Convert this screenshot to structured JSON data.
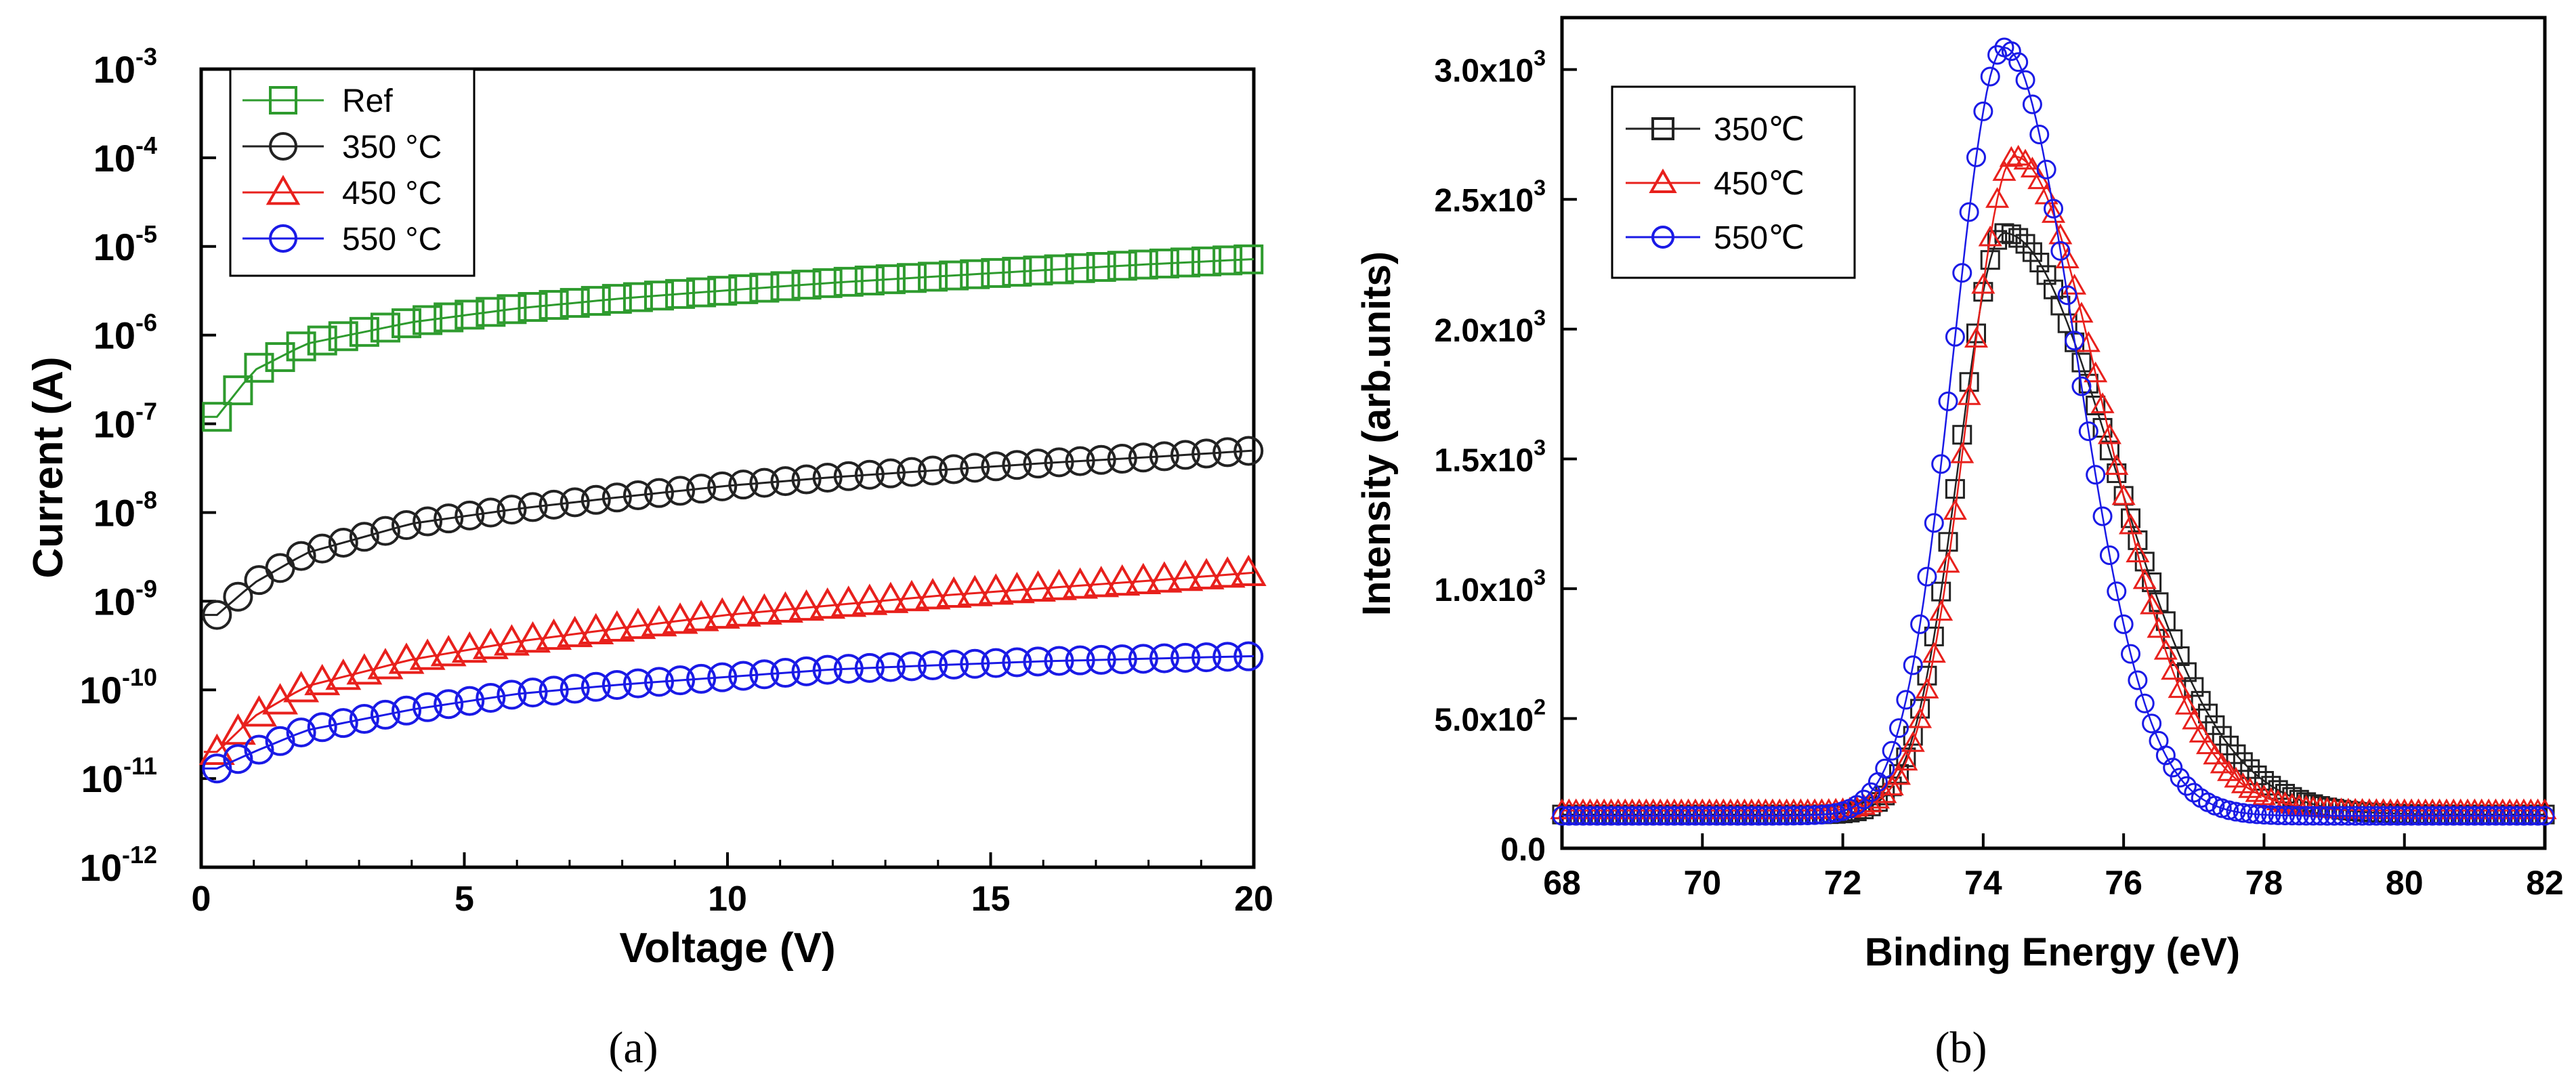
{
  "chart_data": [
    {
      "type": "scatter",
      "panel_label": "(a)",
      "xlabel": "Voltage (V)",
      "ylabel": "Current (A)",
      "xlim": [
        0,
        20
      ],
      "ylim_log10": [
        -12,
        -3
      ],
      "yscale": "log",
      "xticks": [
        {
          "value": 0,
          "label": "0"
        },
        {
          "value": 5,
          "label": "5"
        },
        {
          "value": 10,
          "label": "10"
        },
        {
          "value": 15,
          "label": "15"
        },
        {
          "value": 20,
          "label": "20"
        }
      ],
      "yticks": [
        {
          "exp": -3,
          "base": "10",
          "sup": "-3"
        },
        {
          "exp": -4,
          "base": "10",
          "sup": "-4"
        },
        {
          "exp": -5,
          "base": "10",
          "sup": "-5"
        },
        {
          "exp": -6,
          "base": "10",
          "sup": "-6"
        },
        {
          "exp": -7,
          "base": "10",
          "sup": "-7"
        },
        {
          "exp": -8,
          "base": "10",
          "sup": "-8"
        },
        {
          "exp": -9,
          "base": "10",
          "sup": "-9"
        },
        {
          "exp": -10,
          "base": "10",
          "sup": "-10"
        },
        {
          "exp": -11,
          "base": "10",
          "sup": "-11"
        },
        {
          "exp": -12,
          "base": "10",
          "sup": "-12"
        }
      ],
      "legend_position": "top-left",
      "series": [
        {
          "name": "Ref",
          "color": "#2e9b2e",
          "marker": "square",
          "v": [
            0.3,
            1,
            2,
            4,
            6,
            8,
            10,
            12,
            14,
            16,
            18,
            20
          ],
          "i": [
            1.2e-07,
            4e-07,
            8e-07,
            1.4e-06,
            2e-06,
            2.6e-06,
            3.2e-06,
            3.9e-06,
            4.6e-06,
            5.4e-06,
            6.3e-06,
            7.2e-06
          ]
        },
        {
          "name": "350 °C",
          "color": "#222222",
          "marker": "circle",
          "v": [
            0.3,
            1,
            2,
            4,
            6,
            8,
            10,
            12,
            14,
            16,
            18,
            20
          ],
          "i": [
            7e-10,
            1.6e-09,
            3.5e-09,
            7.5e-09,
            1.1e-08,
            1.5e-08,
            2e-08,
            2.5e-08,
            3e-08,
            3.6e-08,
            4.2e-08,
            5e-08
          ]
        },
        {
          "name": "450 °C",
          "color": "#e8201c",
          "marker": "triangle",
          "v": [
            0.3,
            1,
            2,
            4,
            6,
            8,
            10,
            12,
            14,
            16,
            18,
            20
          ],
          "i": [
            2e-11,
            5e-11,
            1.1e-10,
            2.2e-10,
            3.5e-10,
            5e-10,
            7e-10,
            9e-10,
            1.15e-09,
            1.4e-09,
            1.7e-09,
            2.1e-09
          ]
        },
        {
          "name": "550 °C",
          "color": "#1a1ae6",
          "marker": "circle",
          "v": [
            0.3,
            1,
            2,
            4,
            6,
            8,
            10,
            12,
            14,
            16,
            18,
            20
          ],
          "i": [
            1.3e-11,
            2e-11,
            3.5e-11,
            6e-11,
            9e-11,
            1.15e-10,
            1.4e-10,
            1.7e-10,
            1.9e-10,
            2.1e-10,
            2.25e-10,
            2.4e-10
          ]
        }
      ]
    },
    {
      "type": "scatter",
      "panel_label": "(b)",
      "xlabel": "Binding Energy (eV)",
      "ylabel": "Intensity (arb.units)",
      "xlim": [
        68,
        82
      ],
      "ylim": [
        0,
        3200
      ],
      "xticks": [
        {
          "value": 68,
          "label": "68"
        },
        {
          "value": 70,
          "label": "70"
        },
        {
          "value": 72,
          "label": "72"
        },
        {
          "value": 74,
          "label": "74"
        },
        {
          "value": 76,
          "label": "76"
        },
        {
          "value": 78,
          "label": "78"
        },
        {
          "value": 80,
          "label": "80"
        },
        {
          "value": 82,
          "label": "82"
        }
      ],
      "yticks": [
        {
          "value": 0,
          "mant": "0.0",
          "sup": ""
        },
        {
          "value": 500,
          "mant": "5.0x10",
          "sup": "2"
        },
        {
          "value": 1000,
          "mant": "1.0x10",
          "sup": "3"
        },
        {
          "value": 1500,
          "mant": "1.5x10",
          "sup": "3"
        },
        {
          "value": 2000,
          "mant": "2.0x10",
          "sup": "3"
        },
        {
          "value": 2500,
          "mant": "2.5x10",
          "sup": "3"
        },
        {
          "value": 3000,
          "mant": "3.0x10",
          "sup": "3"
        }
      ],
      "legend_position": "top-left",
      "series": [
        {
          "name": "350℃",
          "color": "#222222",
          "marker": "square",
          "baseline": 130,
          "peak_center": 74.3,
          "peak_height": 2240,
          "sigma_left": 0.65,
          "sigma_right": 1.55
        },
        {
          "name": "450℃",
          "color": "#e8201c",
          "marker": "triangle",
          "baseline": 145,
          "peak_center": 74.45,
          "peak_height": 2520,
          "sigma_left": 0.68,
          "sigma_right": 1.28
        },
        {
          "name": "550℃",
          "color": "#1a1ae6",
          "marker": "circle",
          "baseline": 125,
          "peak_center": 74.3,
          "peak_height": 2960,
          "sigma_left": 0.72,
          "sigma_right": 1.02
        }
      ]
    }
  ]
}
